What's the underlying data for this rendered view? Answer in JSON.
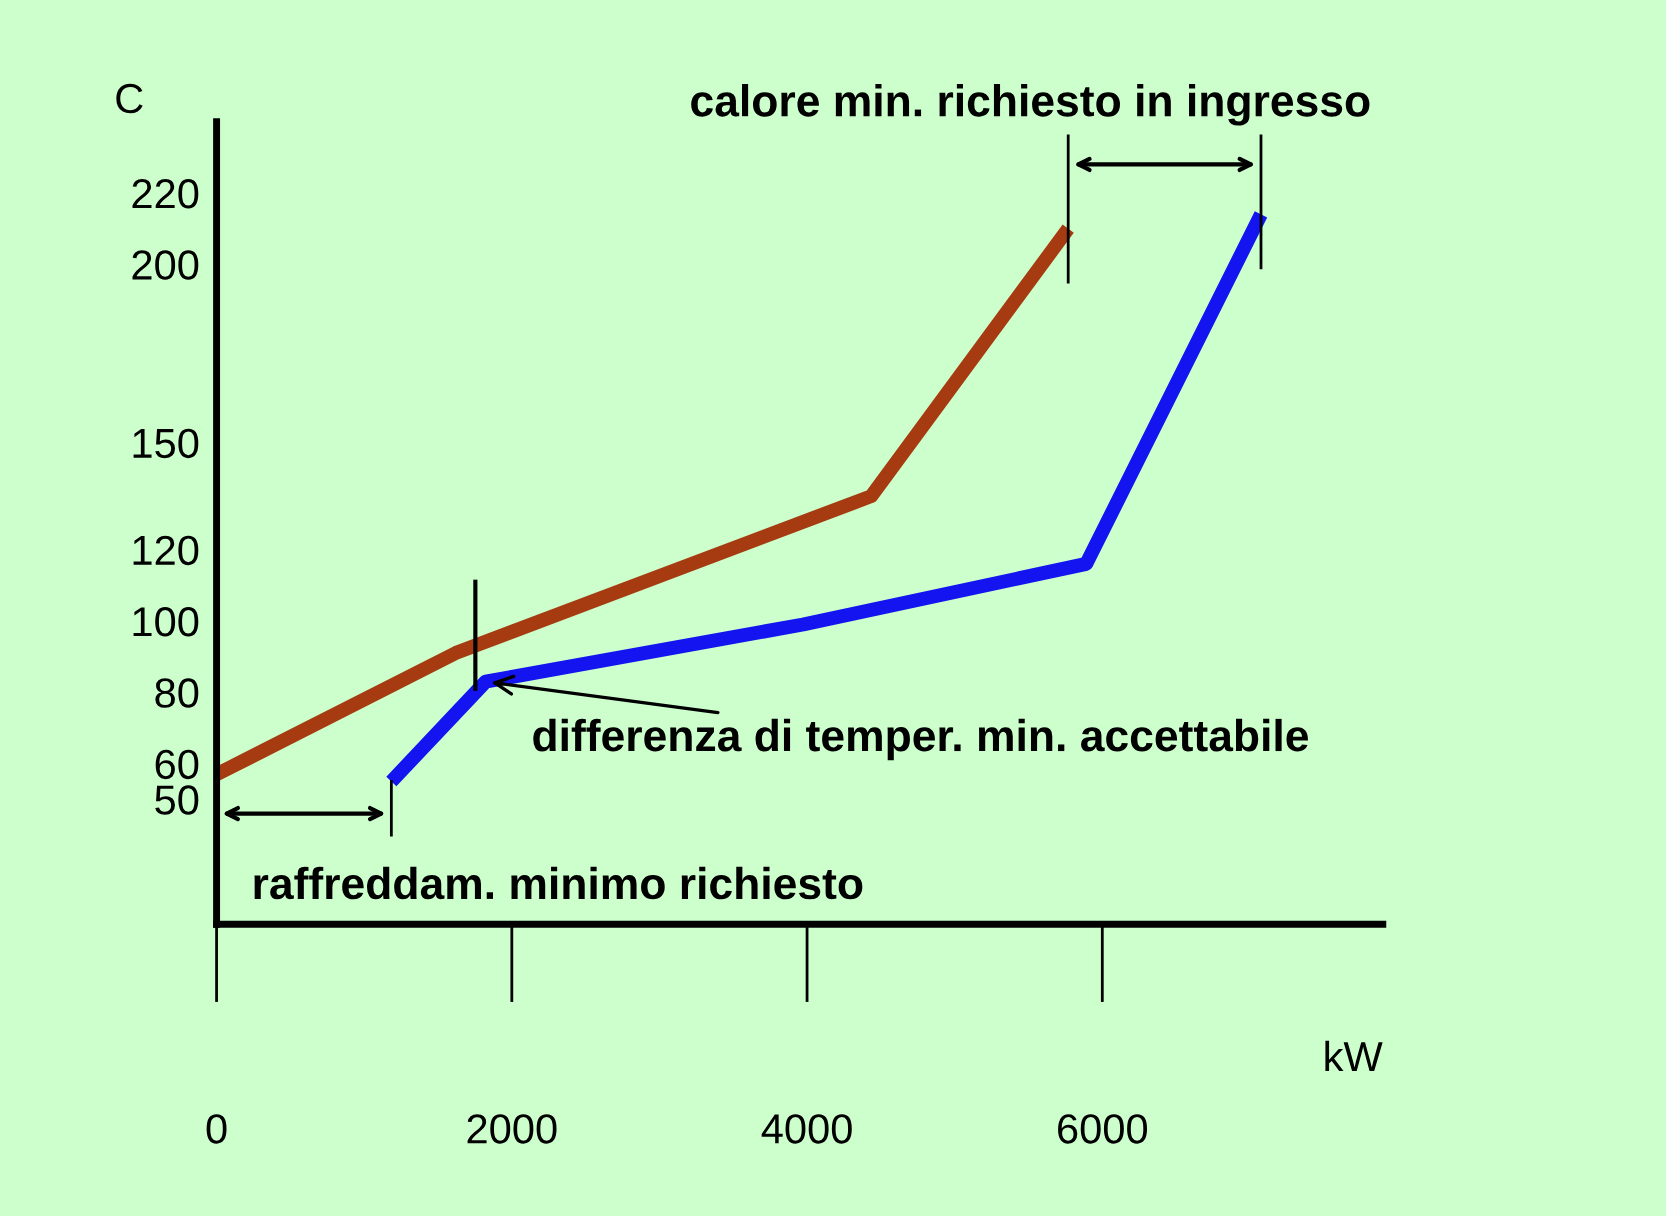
{
  "chart_data": {
    "type": "line",
    "xlabel": "kW",
    "ylabel": "C",
    "series": [
      {
        "x": [
          0,
          1619,
          4435,
          5769
        ],
        "values": [
          57,
          91,
          135,
          210
        ],
        "color": "#a63a10"
      },
      {
        "x": [
          1184,
          1823,
          3973,
          5891,
          7075
        ],
        "values": [
          55,
          83,
          99,
          116,
          214
        ],
        "color": "#1414f0"
      }
    ],
    "xlim": [
      0,
      7900
    ],
    "xticks": [
      0,
      2000,
      4000,
      6000
    ],
    "ylim": [
      15,
      240
    ],
    "yticks": [
      50,
      60,
      80,
      100,
      120,
      150,
      200,
      220
    ],
    "grid": false,
    "legend": false,
    "marker": "none",
    "line_style": "solid",
    "annotations": [
      "calore min. richiesto in ingresso",
      "raffreddam. minimo richiesto",
      {
        "text": "differenza di temper. min. accettabile",
        "x": 1823,
        "y": 83
      }
    ]
  }
}
